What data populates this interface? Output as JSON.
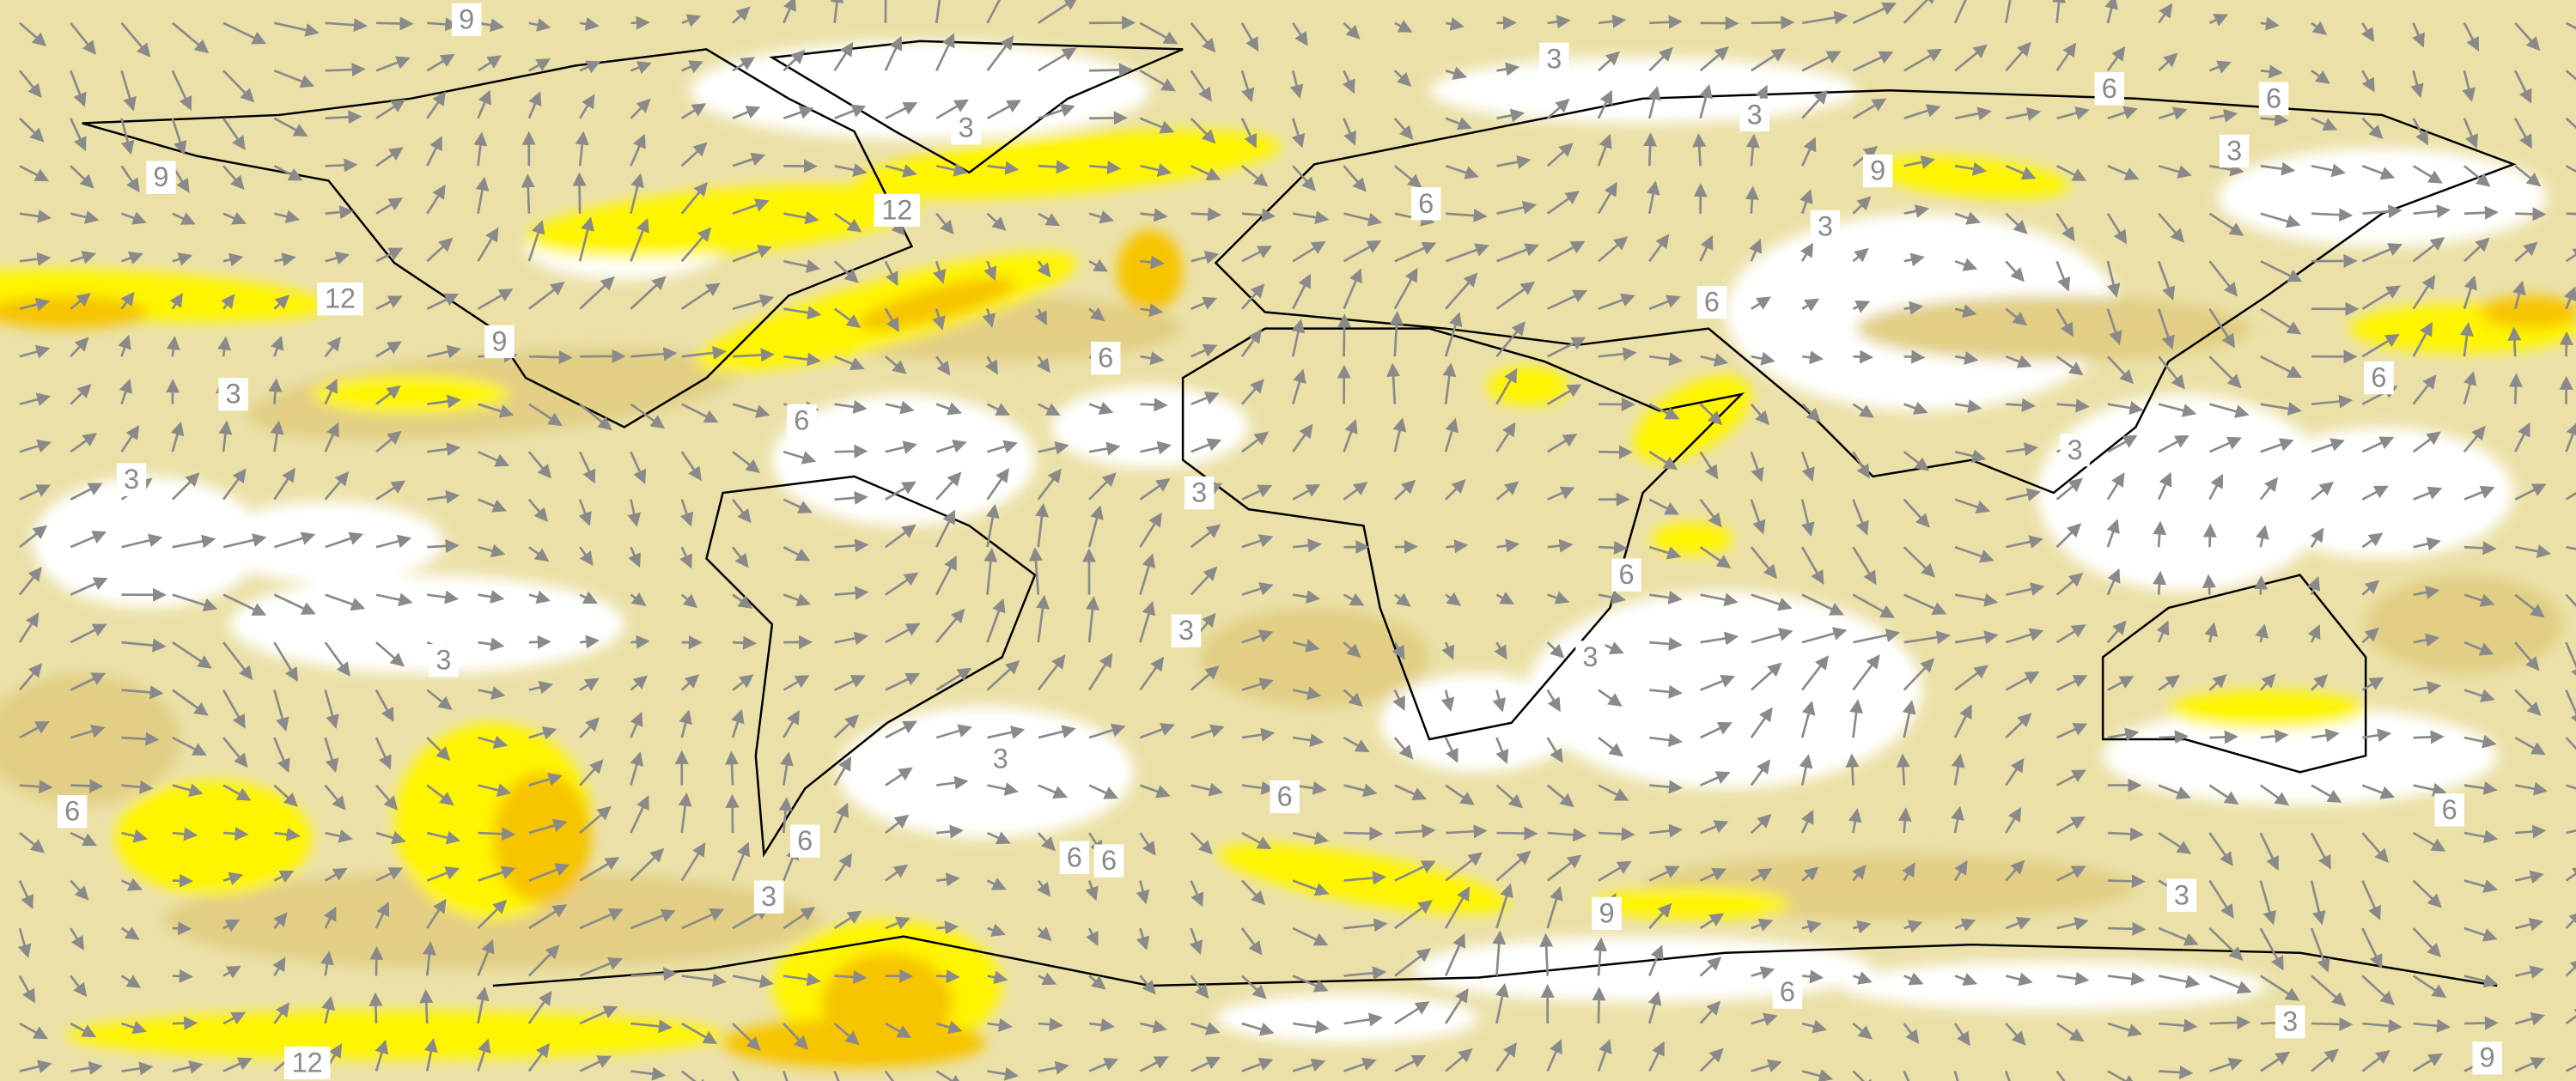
{
  "contour_labels": [
    "9",
    "3",
    "3",
    "3",
    "6",
    "6",
    "3",
    "9",
    "12",
    "9",
    "6",
    "3",
    "12",
    "6",
    "9",
    "6",
    "6",
    "3",
    "6",
    "3",
    "3",
    "3",
    "6",
    "3",
    "3",
    "3",
    "3",
    "6",
    "6",
    "6",
    "6",
    "6",
    "6",
    "3",
    "3",
    "9",
    "6",
    "3",
    "12",
    "9"
  ]
}
